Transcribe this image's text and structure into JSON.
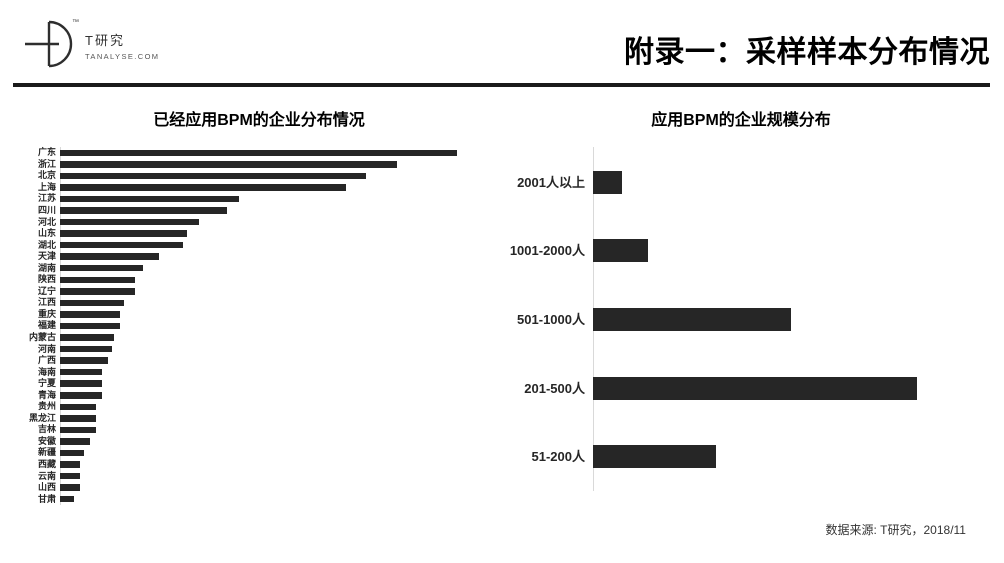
{
  "header": {
    "logo": {
      "brand_name": "T研究",
      "brand_domain": "TANALYSE.COM",
      "trademark": "™"
    },
    "title": "附录一：采样样本分布情况"
  },
  "footer": {
    "source_note": "数据来源: T研究，2018/11"
  },
  "colors": {
    "bar": "#262626",
    "axis_line": "#d9d9d9",
    "divider": "#1a1a1a"
  },
  "chart_data": [
    {
      "type": "bar",
      "orientation": "horizontal",
      "title": "已经应用BPM的企业分布情况",
      "xlabel": "",
      "ylabel": "",
      "value_axis": "unlabeled; values are relative bar lengths, max = 100",
      "legend": false,
      "grid": false,
      "categories": [
        "广东",
        "浙江",
        "北京",
        "上海",
        "江苏",
        "四川",
        "河北",
        "山东",
        "湖北",
        "天津",
        "湖南",
        "陕西",
        "辽宁",
        "江西",
        "重庆",
        "福建",
        "内蒙古",
        "河南",
        "广西",
        "海南",
        "宁夏",
        "青海",
        "贵州",
        "黑龙江",
        "吉林",
        "安徽",
        "新疆",
        "西藏",
        "云南",
        "山西",
        "甘肃"
      ],
      "values": [
        100,
        85,
        77,
        72,
        45,
        42,
        35,
        32,
        31,
        25,
        21,
        19,
        19,
        16,
        15,
        15,
        13.5,
        13,
        12,
        10.5,
        10.5,
        10.5,
        9,
        9,
        9,
        7.5,
        6,
        5,
        5,
        5,
        3.5
      ]
    },
    {
      "type": "bar",
      "orientation": "horizontal",
      "title": "应用BPM的企业规模分布",
      "xlabel": "",
      "ylabel": "",
      "value_axis": "unlabeled; values are relative bar lengths, max = 100",
      "legend": false,
      "grid": false,
      "categories": [
        "2001人以上",
        "1001-2000人",
        "501-1000人",
        "201-500人",
        "51-200人"
      ],
      "values": [
        9,
        17,
        61,
        100,
        38
      ]
    }
  ]
}
